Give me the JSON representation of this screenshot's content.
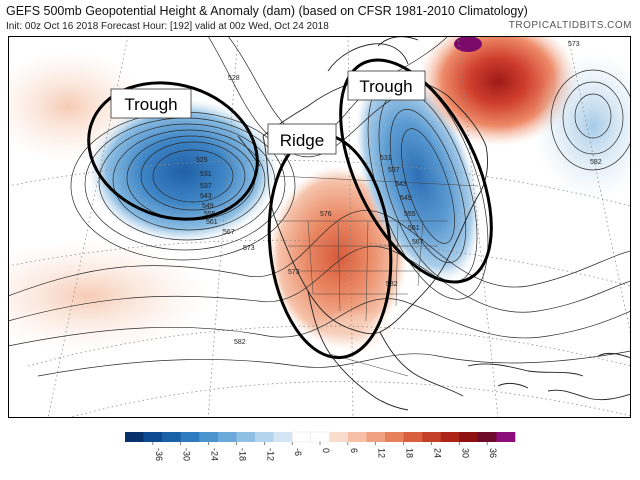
{
  "header": {
    "title": "GEFS 500mb Geopotential Height & Anomaly (dam) (based on CFSR 1981-2010 Climatology)",
    "subtitle": "Init: 00z Oct 16 2018   Forecast Hour: [192]   valid at 00z Wed, Oct 24 2018",
    "brand": "TROPICALTIDBITS.COM"
  },
  "annotations": {
    "trough_west": "Trough",
    "ridge": "Ridge",
    "trough_east": "Trough"
  },
  "contour_labels": [
    "528",
    "525",
    "531",
    "537",
    "543",
    "549",
    "555",
    "561",
    "567",
    "573",
    "576",
    "582",
    "531",
    "537",
    "543",
    "549",
    "555",
    "561",
    "567",
    "573",
    "573",
    "582",
    "582"
  ],
  "colorbar": {
    "ticks": [
      "-36",
      "-30",
      "-24",
      "-18",
      "-12",
      "-6",
      "0",
      "6",
      "12",
      "18",
      "24",
      "30",
      "36"
    ],
    "colors": [
      "#08306b",
      "#0d4a8f",
      "#1a62a8",
      "#2f7bbf",
      "#4a93cd",
      "#6aa9d9",
      "#8fc0e4",
      "#b3d4ec",
      "#d4e6f3",
      "#ffffff",
      "#ffffff",
      "#f9dccd",
      "#f5c0a6",
      "#f0a080",
      "#e6805c",
      "#d9603e",
      "#c44028",
      "#ad2418",
      "#8e1010",
      "#6e0a2a",
      "#8a0f7a"
    ]
  },
  "colors": {
    "land": "#ffffff",
    "ocean": "#ffffff",
    "trough_blue": "#3d7fc0",
    "ridge_red": "#e0704c"
  }
}
